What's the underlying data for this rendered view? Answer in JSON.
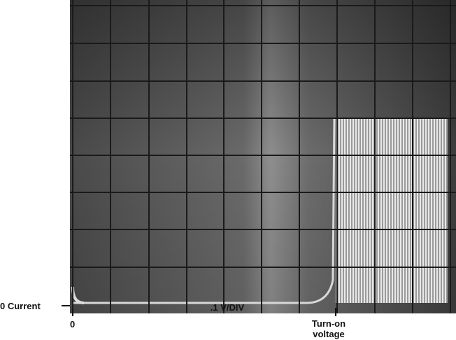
{
  "labels": {
    "zero_current": "0 Current",
    "zero_voltage": "0",
    "scale": ".1 V/DIV",
    "turn_on_line1": "Turn-on",
    "turn_on_line2": "voltage"
  }
}
